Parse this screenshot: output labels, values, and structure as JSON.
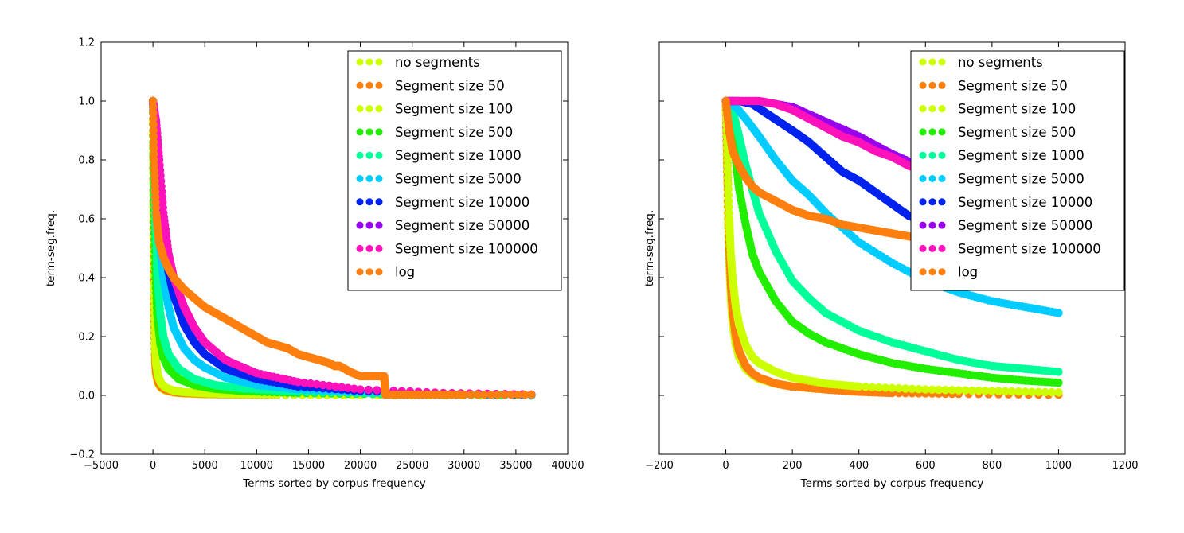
{
  "chart_data": [
    {
      "type": "scatter",
      "title": "",
      "xlabel": "Terms sorted by corpus frequency",
      "ylabel": "term-seg.freq.",
      "xlim": [
        -5000,
        40000
      ],
      "ylim": [
        -0.2,
        1.2
      ],
      "xticks": [
        -5000,
        0,
        5000,
        10000,
        15000,
        20000,
        25000,
        30000,
        35000,
        40000
      ],
      "yticks": [
        -0.2,
        0.0,
        0.2,
        0.4,
        0.6,
        0.8,
        1.0,
        1.2
      ],
      "xtick_labels": [
        "−5000",
        "0",
        "5000",
        "10000",
        "15000",
        "20000",
        "25000",
        "30000",
        "35000",
        "40000"
      ],
      "ytick_labels": [
        "−0.2",
        "0.0",
        "0.2",
        "0.4",
        "0.6",
        "0.8",
        "1.0",
        "1.2"
      ],
      "legend_position": "upper-right",
      "series": [
        {
          "name": "no segments",
          "color": "#ccff00",
          "x": [
            0,
            50,
            100,
            200,
            300,
            500,
            800,
            1200,
            2000,
            3000,
            5000,
            8000,
            12000,
            20000,
            36500
          ],
          "y": [
            1.0,
            0.6,
            0.3,
            0.12,
            0.07,
            0.04,
            0.025,
            0.017,
            0.01,
            0.007,
            0.004,
            0.003,
            0.002,
            0.001,
            0.0
          ]
        },
        {
          "name": "Segment size 50",
          "color": "#ff7f0e",
          "x": [
            0,
            50,
            100,
            200,
            300,
            500,
            800,
            1200,
            2000,
            3000,
            5000,
            8000,
            12000,
            20000,
            36500
          ],
          "y": [
            1.0,
            0.62,
            0.33,
            0.14,
            0.08,
            0.045,
            0.028,
            0.019,
            0.011,
            0.008,
            0.005,
            0.003,
            0.002,
            0.001,
            0.0
          ]
        },
        {
          "name": "Segment size 100",
          "color": "#ccff00",
          "x": [
            0,
            50,
            100,
            200,
            300,
            500,
            800,
            1200,
            2000,
            3000,
            5000,
            8000,
            12000,
            20000,
            36500
          ],
          "y": [
            1.0,
            0.65,
            0.38,
            0.18,
            0.11,
            0.065,
            0.04,
            0.027,
            0.016,
            0.011,
            0.007,
            0.004,
            0.003,
            0.001,
            0.0
          ]
        },
        {
          "name": "Segment size 500",
          "color": "#22ee00",
          "x": [
            0,
            50,
            100,
            200,
            400,
            700,
            1000,
            1500,
            2500,
            4000,
            6000,
            9000,
            14000,
            22000,
            36500
          ],
          "y": [
            1.0,
            0.8,
            0.65,
            0.45,
            0.28,
            0.18,
            0.13,
            0.09,
            0.055,
            0.035,
            0.022,
            0.014,
            0.008,
            0.004,
            0.0
          ]
        },
        {
          "name": "Segment size 1000",
          "color": "#00ff99",
          "x": [
            0,
            100,
            200,
            400,
            700,
            1000,
            1500,
            2500,
            4000,
            6000,
            9000,
            14000,
            22000,
            36500
          ],
          "y": [
            1.0,
            0.8,
            0.62,
            0.42,
            0.28,
            0.2,
            0.14,
            0.09,
            0.055,
            0.035,
            0.022,
            0.012,
            0.006,
            0.0
          ]
        },
        {
          "name": "Segment size 5000",
          "color": "#00ccff",
          "x": [
            0,
            200,
            400,
            700,
            1000,
            1500,
            2000,
            3000,
            4000,
            5000,
            7000,
            10000,
            14000,
            20000,
            28000,
            36500
          ],
          "y": [
            1.0,
            0.85,
            0.68,
            0.5,
            0.4,
            0.3,
            0.23,
            0.16,
            0.12,
            0.095,
            0.06,
            0.035,
            0.02,
            0.01,
            0.005,
            0.0
          ]
        },
        {
          "name": "Segment size 10000",
          "color": "#0022ee",
          "x": [
            0,
            200,
            400,
            700,
            1000,
            1500,
            2000,
            3000,
            4000,
            5000,
            7000,
            10000,
            14000,
            20000,
            28000,
            36500
          ],
          "y": [
            1.0,
            0.9,
            0.78,
            0.62,
            0.52,
            0.42,
            0.34,
            0.24,
            0.18,
            0.14,
            0.09,
            0.055,
            0.03,
            0.015,
            0.007,
            0.002
          ]
        },
        {
          "name": "Segment size 50000",
          "color": "#9900ee",
          "x": [
            0,
            300,
            600,
            1000,
            1500,
            2000,
            3000,
            4000,
            5000,
            7000,
            10000,
            14000,
            20000,
            28000,
            36500
          ],
          "y": [
            1.0,
            0.93,
            0.8,
            0.62,
            0.48,
            0.4,
            0.3,
            0.23,
            0.18,
            0.12,
            0.075,
            0.045,
            0.02,
            0.008,
            0.003
          ]
        },
        {
          "name": "Segment size 100000",
          "color": "#ff11bb",
          "x": [
            0,
            300,
            600,
            1000,
            1500,
            2000,
            3000,
            4000,
            5000,
            7000,
            10000,
            14000,
            20000,
            28000,
            36500
          ],
          "y": [
            1.0,
            0.93,
            0.8,
            0.62,
            0.48,
            0.4,
            0.3,
            0.23,
            0.18,
            0.12,
            0.075,
            0.045,
            0.02,
            0.008,
            0.003
          ]
        },
        {
          "name": "log",
          "color": "#ff7f0e",
          "x": [
            0,
            100,
            300,
            600,
            1000,
            1500,
            2000,
            3000,
            4000,
            5000,
            6000,
            7000,
            8000,
            9000,
            10000,
            11000,
            12000,
            13000,
            14000,
            15000,
            16000,
            17000,
            17500,
            18000,
            19000,
            20000,
            21000,
            22300,
            22400,
            26000,
            30000,
            36500
          ],
          "y": [
            1.0,
            0.8,
            0.62,
            0.52,
            0.47,
            0.43,
            0.4,
            0.36,
            0.33,
            0.3,
            0.28,
            0.26,
            0.24,
            0.22,
            0.2,
            0.18,
            0.17,
            0.16,
            0.14,
            0.13,
            0.12,
            0.11,
            0.1,
            0.1,
            0.08,
            0.065,
            0.065,
            0.065,
            0.002,
            0.002,
            0.002,
            0.002
          ]
        }
      ]
    },
    {
      "type": "scatter",
      "title": "",
      "xlabel": "Terms sorted by corpus frequency",
      "ylabel": "term-seg.freq.",
      "xlim": [
        -200,
        1200
      ],
      "ylim": [
        -0.2,
        1.2
      ],
      "xticks": [
        -200,
        0,
        200,
        400,
        600,
        800,
        1000,
        1200
      ],
      "yticks": [
        -0.2,
        0.0,
        0.2,
        0.4,
        0.6,
        0.8,
        1.0,
        1.2
      ],
      "xtick_labels": [
        "−200",
        "0",
        "200",
        "400",
        "600",
        "800",
        "1000",
        "1200"
      ],
      "legend_position": "upper-right",
      "series": [
        {
          "name": "no segments",
          "color": "#ccff00",
          "x": [
            0,
            3,
            6,
            10,
            15,
            20,
            30,
            40,
            60,
            80,
            100,
            150,
            200,
            300,
            400,
            500,
            700,
            1000
          ],
          "y": [
            1.0,
            0.8,
            0.6,
            0.45,
            0.33,
            0.25,
            0.17,
            0.13,
            0.09,
            0.07,
            0.055,
            0.04,
            0.03,
            0.02,
            0.015,
            0.012,
            0.008,
            0.005
          ]
        },
        {
          "name": "Segment size 50",
          "color": "#ff7f0e",
          "x": [
            0,
            3,
            6,
            10,
            15,
            20,
            30,
            40,
            60,
            80,
            100,
            150,
            200,
            300,
            400,
            500,
            700,
            1000
          ],
          "y": [
            1.0,
            0.85,
            0.7,
            0.5,
            0.38,
            0.29,
            0.2,
            0.15,
            0.1,
            0.075,
            0.06,
            0.04,
            0.03,
            0.02,
            0.012,
            0.008,
            0.005,
            0.002
          ]
        },
        {
          "name": "Segment size 100",
          "color": "#ccff00",
          "x": [
            0,
            5,
            10,
            15,
            20,
            30,
            40,
            60,
            80,
            100,
            150,
            200,
            300,
            400,
            600,
            800,
            1000
          ],
          "y": [
            1.0,
            0.8,
            0.6,
            0.48,
            0.4,
            0.3,
            0.24,
            0.17,
            0.13,
            0.11,
            0.08,
            0.06,
            0.04,
            0.03,
            0.02,
            0.015,
            0.01
          ]
        },
        {
          "name": "Segment size 500",
          "color": "#22ee00",
          "x": [
            0,
            10,
            20,
            30,
            40,
            60,
            80,
            100,
            150,
            200,
            250,
            300,
            400,
            500,
            600,
            700,
            800,
            900,
            1000
          ],
          "y": [
            1.0,
            0.97,
            0.9,
            0.8,
            0.7,
            0.58,
            0.48,
            0.42,
            0.32,
            0.25,
            0.21,
            0.18,
            0.14,
            0.11,
            0.09,
            0.075,
            0.06,
            0.05,
            0.043
          ]
        },
        {
          "name": "Segment size 1000",
          "color": "#00ff99",
          "x": [
            0,
            20,
            40,
            60,
            80,
            100,
            150,
            200,
            250,
            300,
            400,
            500,
            600,
            700,
            800,
            900,
            1000
          ],
          "y": [
            1.0,
            0.97,
            0.88,
            0.78,
            0.7,
            0.62,
            0.49,
            0.39,
            0.33,
            0.28,
            0.22,
            0.18,
            0.15,
            0.12,
            0.1,
            0.09,
            0.08
          ]
        },
        {
          "name": "Segment size 5000",
          "color": "#00ccff",
          "x": [
            0,
            30,
            60,
            100,
            150,
            200,
            250,
            300,
            400,
            500,
            600,
            700,
            800,
            900,
            1000
          ],
          "y": [
            1.0,
            0.98,
            0.94,
            0.88,
            0.8,
            0.73,
            0.68,
            0.62,
            0.52,
            0.45,
            0.39,
            0.35,
            0.32,
            0.3,
            0.28
          ]
        },
        {
          "name": "Segment size 10000",
          "color": "#0022ee",
          "x": [
            0,
            40,
            80,
            120,
            160,
            200,
            250,
            300,
            350,
            400,
            450,
            500,
            550,
            600,
            650,
            700,
            750,
            800,
            850,
            900,
            950,
            1000
          ],
          "y": [
            1.0,
            1.0,
            0.99,
            0.96,
            0.93,
            0.9,
            0.86,
            0.81,
            0.76,
            0.73,
            0.69,
            0.65,
            0.61,
            0.59,
            0.56,
            0.53,
            0.5,
            0.47,
            0.45,
            0.42,
            0.4,
            0.38
          ]
        },
        {
          "name": "Segment size 50000",
          "color": "#9900ee",
          "x": [
            0,
            100,
            200,
            300,
            400,
            500,
            600,
            700,
            800,
            900,
            1000
          ],
          "y": [
            1.0,
            1.0,
            0.98,
            0.93,
            0.88,
            0.82,
            0.77,
            0.72,
            0.67,
            0.63,
            0.59
          ]
        },
        {
          "name": "Segment size 100000",
          "color": "#ff11bb",
          "x": [
            0,
            50,
            100,
            150,
            200,
            250,
            300,
            350,
            400,
            450,
            500,
            550,
            600,
            650,
            700,
            750,
            800,
            850,
            900,
            950,
            1000
          ],
          "y": [
            1.0,
            1.0,
            1.0,
            0.99,
            0.97,
            0.94,
            0.91,
            0.88,
            0.86,
            0.83,
            0.81,
            0.78,
            0.76,
            0.74,
            0.72,
            0.7,
            0.68,
            0.66,
            0.64,
            0.62,
            0.6
          ]
        },
        {
          "name": "log",
          "color": "#ff7f0e",
          "x": [
            0,
            10,
            20,
            40,
            60,
            80,
            100,
            150,
            200,
            250,
            300,
            350,
            400,
            450,
            500,
            550,
            600,
            700,
            800,
            900,
            1000
          ],
          "y": [
            1.0,
            0.9,
            0.83,
            0.78,
            0.74,
            0.71,
            0.69,
            0.66,
            0.63,
            0.61,
            0.6,
            0.58,
            0.57,
            0.56,
            0.55,
            0.54,
            0.53,
            0.52,
            0.51,
            0.5,
            0.49
          ]
        }
      ]
    }
  ]
}
